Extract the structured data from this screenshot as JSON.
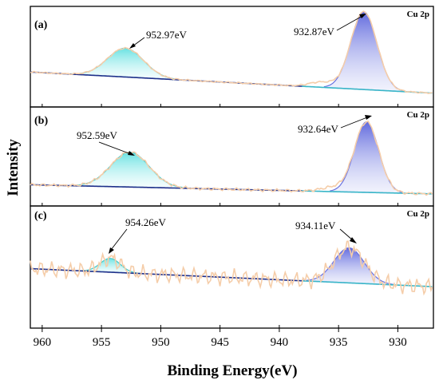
{
  "chart_data": {
    "type": "line",
    "xlabel": "Binding Energy(eV)",
    "ylabel": "Intensity",
    "xlim": [
      961,
      927
    ],
    "x_ticks": [
      960,
      955,
      950,
      945,
      940,
      935,
      930
    ],
    "x_reversed": true,
    "grid": false,
    "colors": {
      "raw": "#f5cda9",
      "background": "#1f2f8a",
      "envelope": "#3ab7c8",
      "peak_2p3": "#6a72e0",
      "peak_2p1": "#7fe6e6"
    },
    "panels": [
      {
        "label": "(a)",
        "corner": "Cu 2p",
        "peaks": [
          {
            "center": 952.97,
            "amplitude": 0.34,
            "fwhm": 3.6,
            "annotation": "952.97eV"
          },
          {
            "center": 932.87,
            "amplitude": 0.92,
            "fwhm": 2.6,
            "annotation": "932.87eV"
          }
        ],
        "background": {
          "left": 0.3,
          "right": 0.05
        },
        "raw_noise": 0.01
      },
      {
        "label": "(b)",
        "corner": "Cu 2p",
        "peaks": [
          {
            "center": 952.59,
            "amplitude": 0.42,
            "fwhm": 3.8,
            "annotation": "952.59eV"
          },
          {
            "center": 932.64,
            "amplitude": 0.85,
            "fwhm": 2.4,
            "annotation": "932.64eV"
          }
        ],
        "background": {
          "left": 0.14,
          "right": 0.03
        },
        "raw_noise": 0.02
      },
      {
        "label": "(c)",
        "corner": "Cu 2p",
        "peaks": [
          {
            "center": 954.26,
            "amplitude": 0.13,
            "fwhm": 2.0,
            "annotation": "954.26eV"
          },
          {
            "center": 934.11,
            "amplitude": 0.33,
            "fwhm": 3.0,
            "annotation": "934.11eV"
          }
        ],
        "background": {
          "left": 0.47,
          "right": 0.3
        },
        "raw_noise": 0.09
      }
    ]
  }
}
